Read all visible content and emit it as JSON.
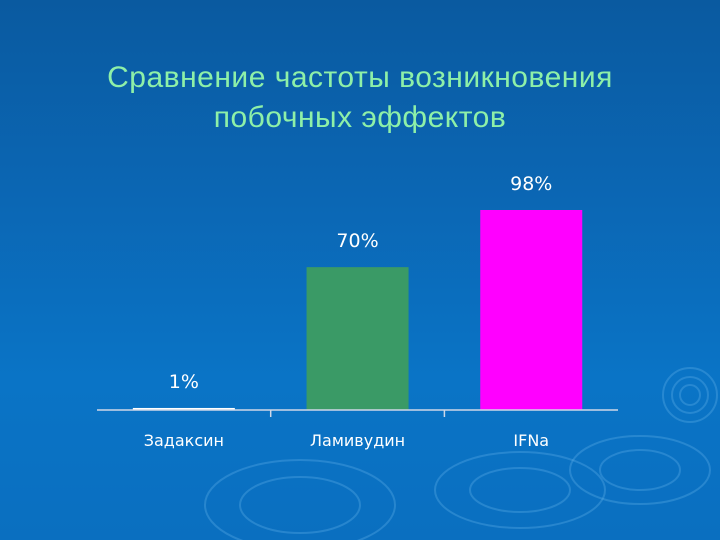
{
  "slide": {
    "title_line1": "Сравнение частоты возникновения",
    "title_line2": "побочных эффектов"
  },
  "colors": {
    "background": "#0a66b3",
    "title": "#8ef0a8",
    "axis": "#cfd8e8",
    "label": "#ffffff"
  },
  "chart_data": {
    "type": "bar",
    "categories": [
      "Задаксин",
      "Ламивудин",
      "IFNa"
    ],
    "values": [
      1,
      70,
      98
    ],
    "data_labels": [
      "1%",
      "70%",
      "98%"
    ],
    "bar_colors": [
      "#ffffff",
      "#3a9a66",
      "#ff00ff"
    ],
    "title": "",
    "xlabel": "",
    "ylabel": "",
    "ylim": [
      0,
      100
    ],
    "grid": false,
    "legend": "none"
  }
}
